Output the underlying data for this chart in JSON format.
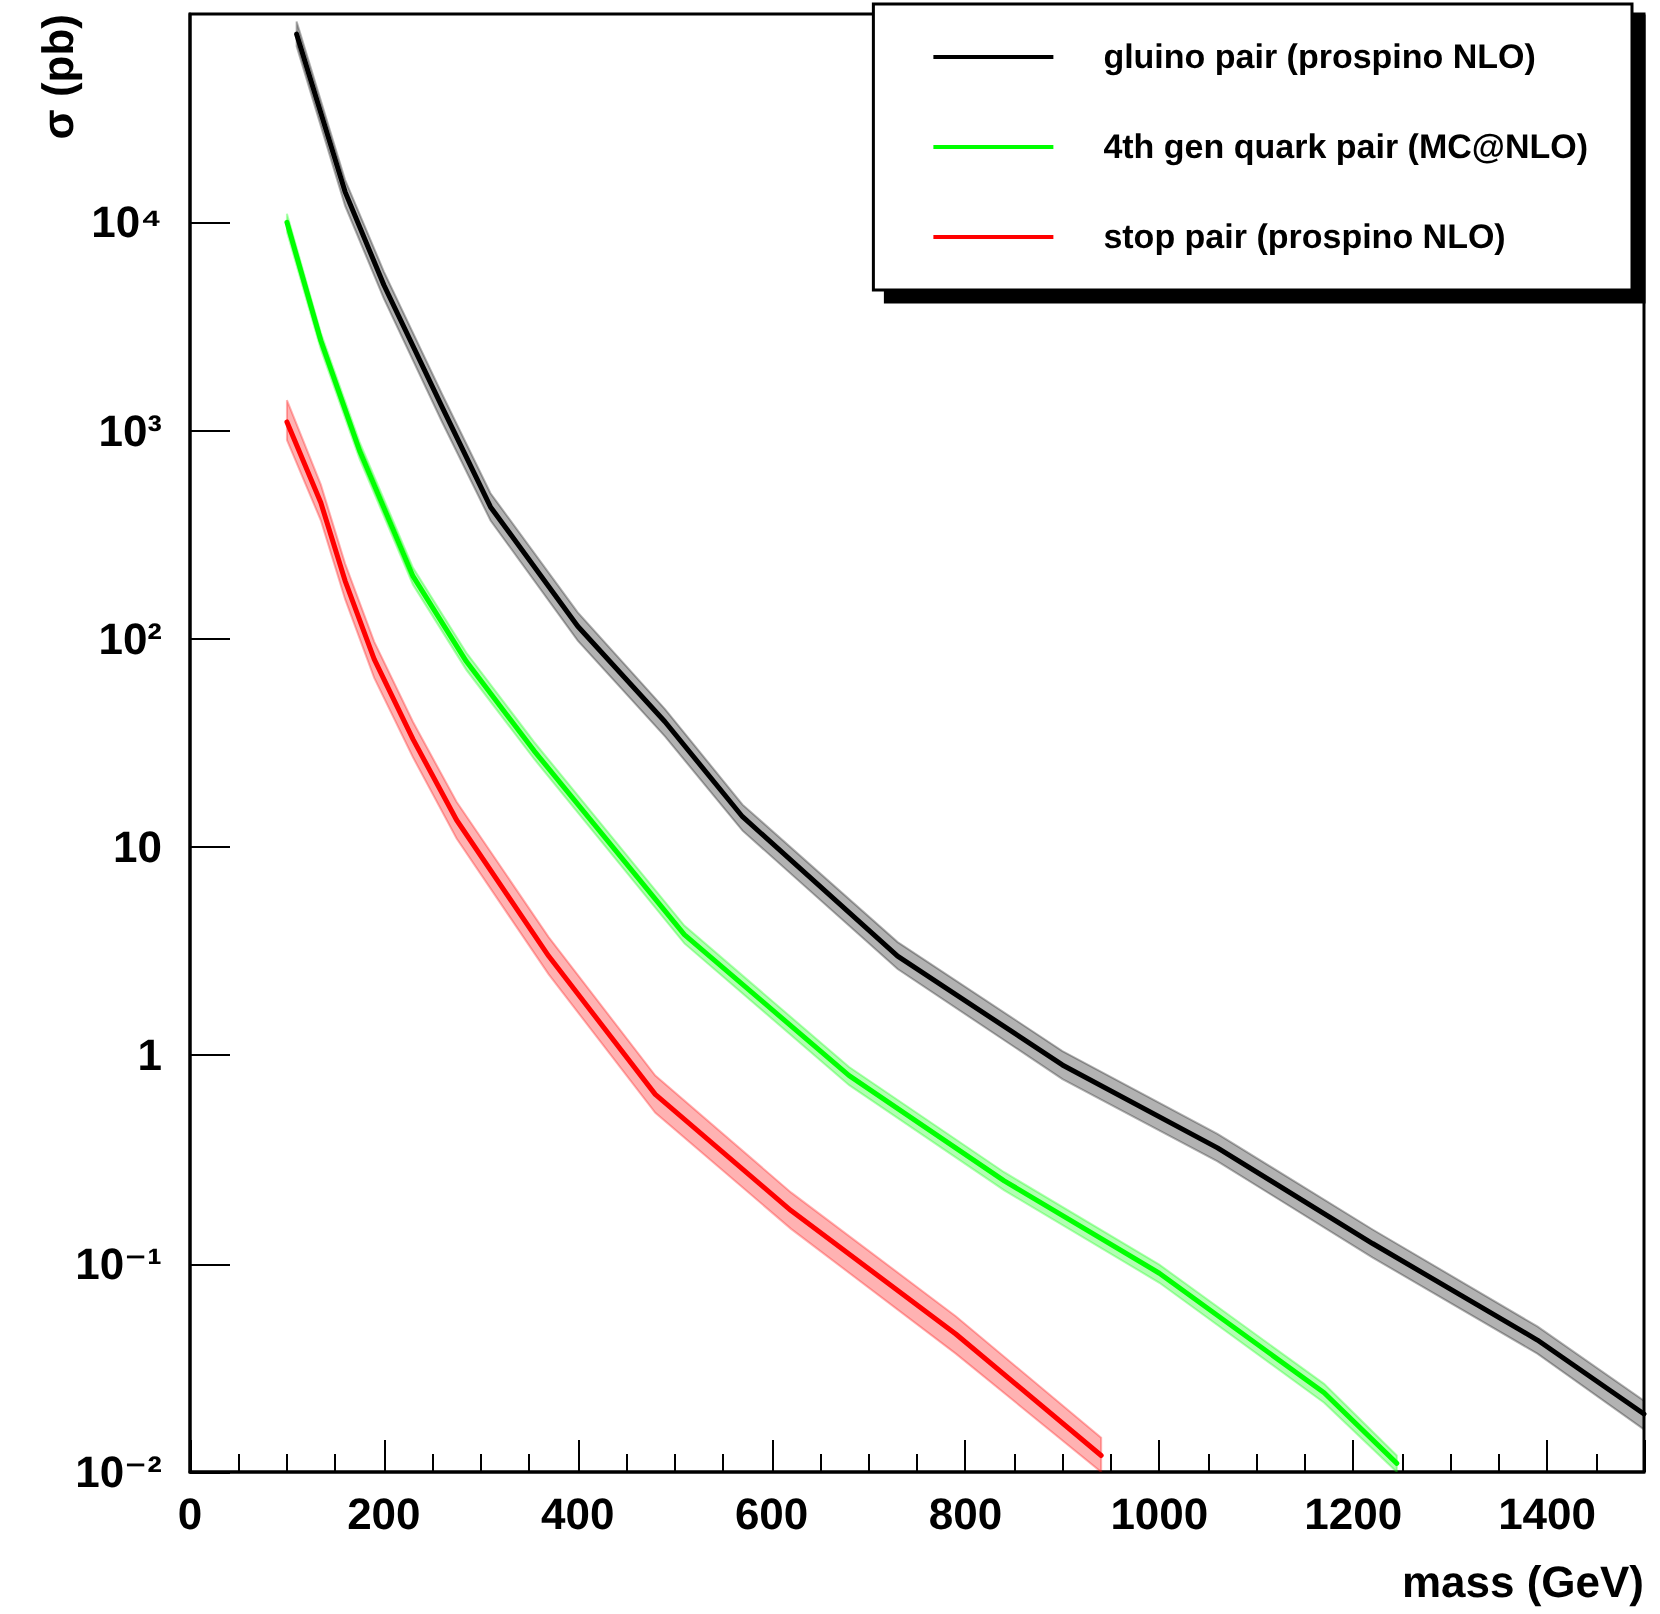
{
  "chart_data": {
    "type": "line",
    "xlabel": "mass (GeV)",
    "ylabel": "σ (pb)",
    "xlim": [
      0,
      1500
    ],
    "xticks": [
      0,
      200,
      400,
      600,
      800,
      1000,
      1200,
      1400
    ],
    "ylim": [
      0.01,
      100000
    ],
    "yticks": [
      {
        "value": 0.01,
        "label": "10⁻²"
      },
      {
        "value": 0.1,
        "label": "10⁻¹"
      },
      1,
      10,
      {
        "value": 100,
        "label": "10²"
      },
      {
        "value": 1000,
        "label": "10³"
      },
      {
        "value": 10000,
        "label": "10⁴"
      }
    ],
    "log": "y",
    "grid": false,
    "legend": "top right",
    "marker": "none",
    "line_style": "solid",
    "series": [
      {
        "name": "gluino pair (prospino NLO)",
        "color": "#000000",
        "x": [
          110,
          160,
          200,
          260,
          310,
          400,
          490,
          570,
          730,
          900,
          1060,
          1220,
          1390,
          1500
        ],
        "values": [
          80000,
          14000,
          5000,
          1300,
          430,
          115,
          40,
          14,
          3.0,
          0.9,
          0.36,
          0.125,
          0.043,
          0.019
        ],
        "lower": [
          70000,
          12000,
          4300,
          1100,
          370,
          98,
          34,
          12,
          2.6,
          0.77,
          0.31,
          0.107,
          0.037,
          0.016
        ],
        "upper": [
          92000,
          16000,
          5800,
          1500,
          500,
          134,
          46,
          16,
          3.5,
          1.05,
          0.42,
          0.146,
          0.05,
          0.022
        ]
      },
      {
        "name": "4th gen quark pair (MC@NLO)",
        "color": "#00ff00",
        "x": [
          100,
          135,
          175,
          230,
          285,
          355,
          510,
          680,
          840,
          1000,
          1170,
          1245
        ],
        "values": [
          10000,
          2700,
          800,
          200,
          78,
          29,
          3.8,
          0.8,
          0.25,
          0.09,
          0.024,
          0.011
        ],
        "lower": [
          9000,
          2450,
          730,
          182,
          71,
          26.5,
          3.45,
          0.72,
          0.225,
          0.081,
          0.0215,
          0.01
        ],
        "upper": [
          11000,
          2950,
          880,
          220,
          86,
          32,
          4.2,
          0.88,
          0.275,
          0.099,
          0.0265,
          0.012
        ]
      },
      {
        "name": "stop pair (prospino NLO)",
        "color": "#ff0000",
        "x": [
          100,
          135,
          160,
          190,
          230,
          275,
          370,
          480,
          620,
          790,
          940
        ],
        "values": [
          1100,
          450,
          190,
          80,
          33,
          13.5,
          3.0,
          0.65,
          0.18,
          0.046,
          0.012
        ],
        "lower": [
          900,
          370,
          155,
          65,
          27,
          11,
          2.45,
          0.53,
          0.147,
          0.037,
          0.01
        ],
        "upper": [
          1400,
          550,
          230,
          97,
          40,
          16.5,
          3.7,
          0.8,
          0.22,
          0.056,
          0.0146
        ]
      }
    ]
  }
}
